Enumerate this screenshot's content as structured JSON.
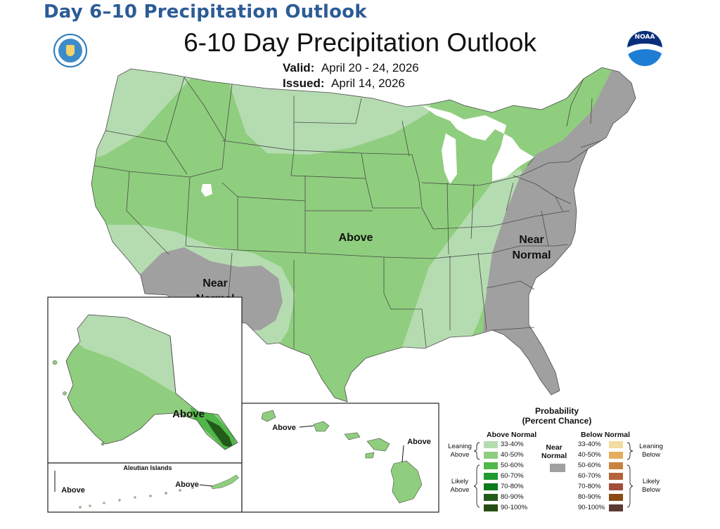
{
  "heading": "Day 6–10 Precipitation Outlook",
  "title": "6-10 Day Precipitation Outlook",
  "valid": {
    "label": "Valid:",
    "value": "April 20 - 24, 2026"
  },
  "issued": {
    "label": "Issued:",
    "value": "April 14, 2026"
  },
  "logos": {
    "left": "department-of-commerce-seal",
    "right": "noaa-logo",
    "noaa_text": "NOAA"
  },
  "regions": {
    "above": "Above",
    "near_west": [
      "Near",
      "Normal"
    ],
    "near_east": [
      "Near",
      "Normal"
    ],
    "alaska": "Above",
    "aleutian_title": "Aleutian Islands",
    "aleutian_left": "Above",
    "aleutian_right": "Above",
    "hawaii_left": "Above",
    "hawaii_right": "Above"
  },
  "colors": {
    "a33": "#b5dcb1",
    "a40": "#8fce7e",
    "a50": "#50b84a",
    "a60": "#1f9a2c",
    "a70": "#0a7a1a",
    "a80": "#235a1a",
    "a90": "#264d12",
    "b33": "#f3dca1",
    "b40": "#e4ae5c",
    "b50": "#c9823f",
    "b60": "#b5623a",
    "b70": "#a24d3c",
    "b80": "#8a4a14",
    "b90": "#5a3a32",
    "near": "#a0a0a0",
    "heading": "#2c5c96"
  },
  "legend": {
    "title_line1": "Probability",
    "title_line2": "(Percent Chance)",
    "above_header": "Above Normal",
    "below_header": "Below Normal",
    "near_line1": "Near",
    "near_line2": "Normal",
    "above_items": [
      "33-40%",
      "40-50%",
      "50-60%",
      "60-70%",
      "70-80%",
      "80-90%",
      "90-100%"
    ],
    "below_items": [
      "33-40%",
      "40-50%",
      "50-60%",
      "60-70%",
      "70-80%",
      "80-90%",
      "90-100%"
    ],
    "leaning_above": [
      "Leaning",
      "Above"
    ],
    "likely_above": [
      "Likely",
      "Above"
    ],
    "leaning_below": [
      "Leaning",
      "Below"
    ],
    "likely_below": [
      "Likely",
      "Below"
    ]
  }
}
